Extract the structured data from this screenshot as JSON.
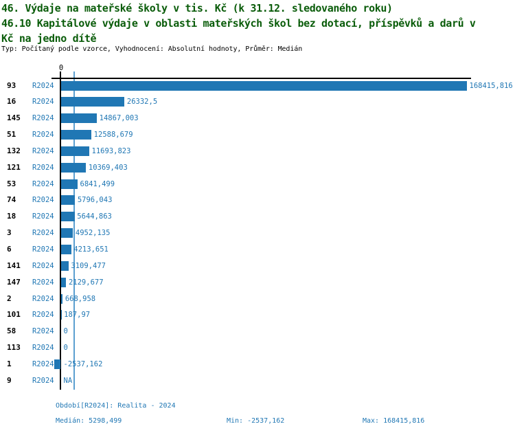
{
  "header": {
    "title_line1": "46. Výdaje na mateřské školy v tis. Kč (k 31.12. sledovaného roku)",
    "title_line2": "46.10 Kapitálové výdaje v oblasti mateřských škol bez dotací, příspěvků a darů v",
    "title_line3": "Kč na jedno dítě",
    "subtitle": "Typ: Počítaný podle vzorce, Vyhodnocení: Absolutní hodnoty, Průměr: Medián",
    "title_color": "#0a5c0a"
  },
  "chart_data": {
    "type": "bar",
    "orientation": "horizontal",
    "title": "46. Výdaje na mateřské školy v tis. Kč (k 31.12. sledovaného roku) — 46.10 Kapitálové výdaje v oblasti mateřských škol bez dotací, příspěvků a darů v Kč na jedno dítě",
    "axis_zero_label": "0",
    "xlim": [
      -2537.162,
      168415.816
    ],
    "max_value": 168415.816,
    "min_value": -2537.162,
    "median_value": 5298.499,
    "period": "R2024",
    "rows": [
      {
        "id": "93",
        "period": "R2024",
        "value": 168415.816,
        "label": "168415,816"
      },
      {
        "id": "16",
        "period": "R2024",
        "value": 26332.5,
        "label": "26332,5"
      },
      {
        "id": "145",
        "period": "R2024",
        "value": 14867.003,
        "label": "14867,003"
      },
      {
        "id": "51",
        "period": "R2024",
        "value": 12588.679,
        "label": "12588,679"
      },
      {
        "id": "132",
        "period": "R2024",
        "value": 11693.823,
        "label": "11693,823"
      },
      {
        "id": "121",
        "period": "R2024",
        "value": 10369.403,
        "label": "10369,403"
      },
      {
        "id": "53",
        "period": "R2024",
        "value": 6841.499,
        "label": "6841,499"
      },
      {
        "id": "74",
        "period": "R2024",
        "value": 5796.043,
        "label": "5796,043"
      },
      {
        "id": "18",
        "period": "R2024",
        "value": 5644.863,
        "label": "5644,863"
      },
      {
        "id": "3",
        "period": "R2024",
        "value": 4952.135,
        "label": "4952,135"
      },
      {
        "id": "6",
        "period": "R2024",
        "value": 4213.651,
        "label": "4213,651"
      },
      {
        "id": "141",
        "period": "R2024",
        "value": 3109.477,
        "label": "3109,477"
      },
      {
        "id": "147",
        "period": "R2024",
        "value": 2129.677,
        "label": "2129,677"
      },
      {
        "id": "2",
        "period": "R2024",
        "value": 668.958,
        "label": "668,958"
      },
      {
        "id": "101",
        "period": "R2024",
        "value": 187.97,
        "label": "187,97"
      },
      {
        "id": "58",
        "period": "R2024",
        "value": 0,
        "label": "0"
      },
      {
        "id": "113",
        "period": "R2024",
        "value": 0,
        "label": "0"
      },
      {
        "id": "1",
        "period": "R2024",
        "value": -2537.162,
        "label": "-2537,162"
      },
      {
        "id": "9",
        "period": "R2024",
        "value": null,
        "label": "NA"
      }
    ],
    "colors": {
      "bar": "#2077b4",
      "value_text": "#2077b4",
      "median_line": "#5b9fd0",
      "axis": "#000000",
      "row_id_text": "#000000"
    },
    "legend": null,
    "grid": false
  },
  "footer": {
    "period_info": "Období[R2024]: Realita - 2024",
    "median": "Medián: 5298,499",
    "min": "Min: -2537,162",
    "max": "Max: 168415,816"
  }
}
